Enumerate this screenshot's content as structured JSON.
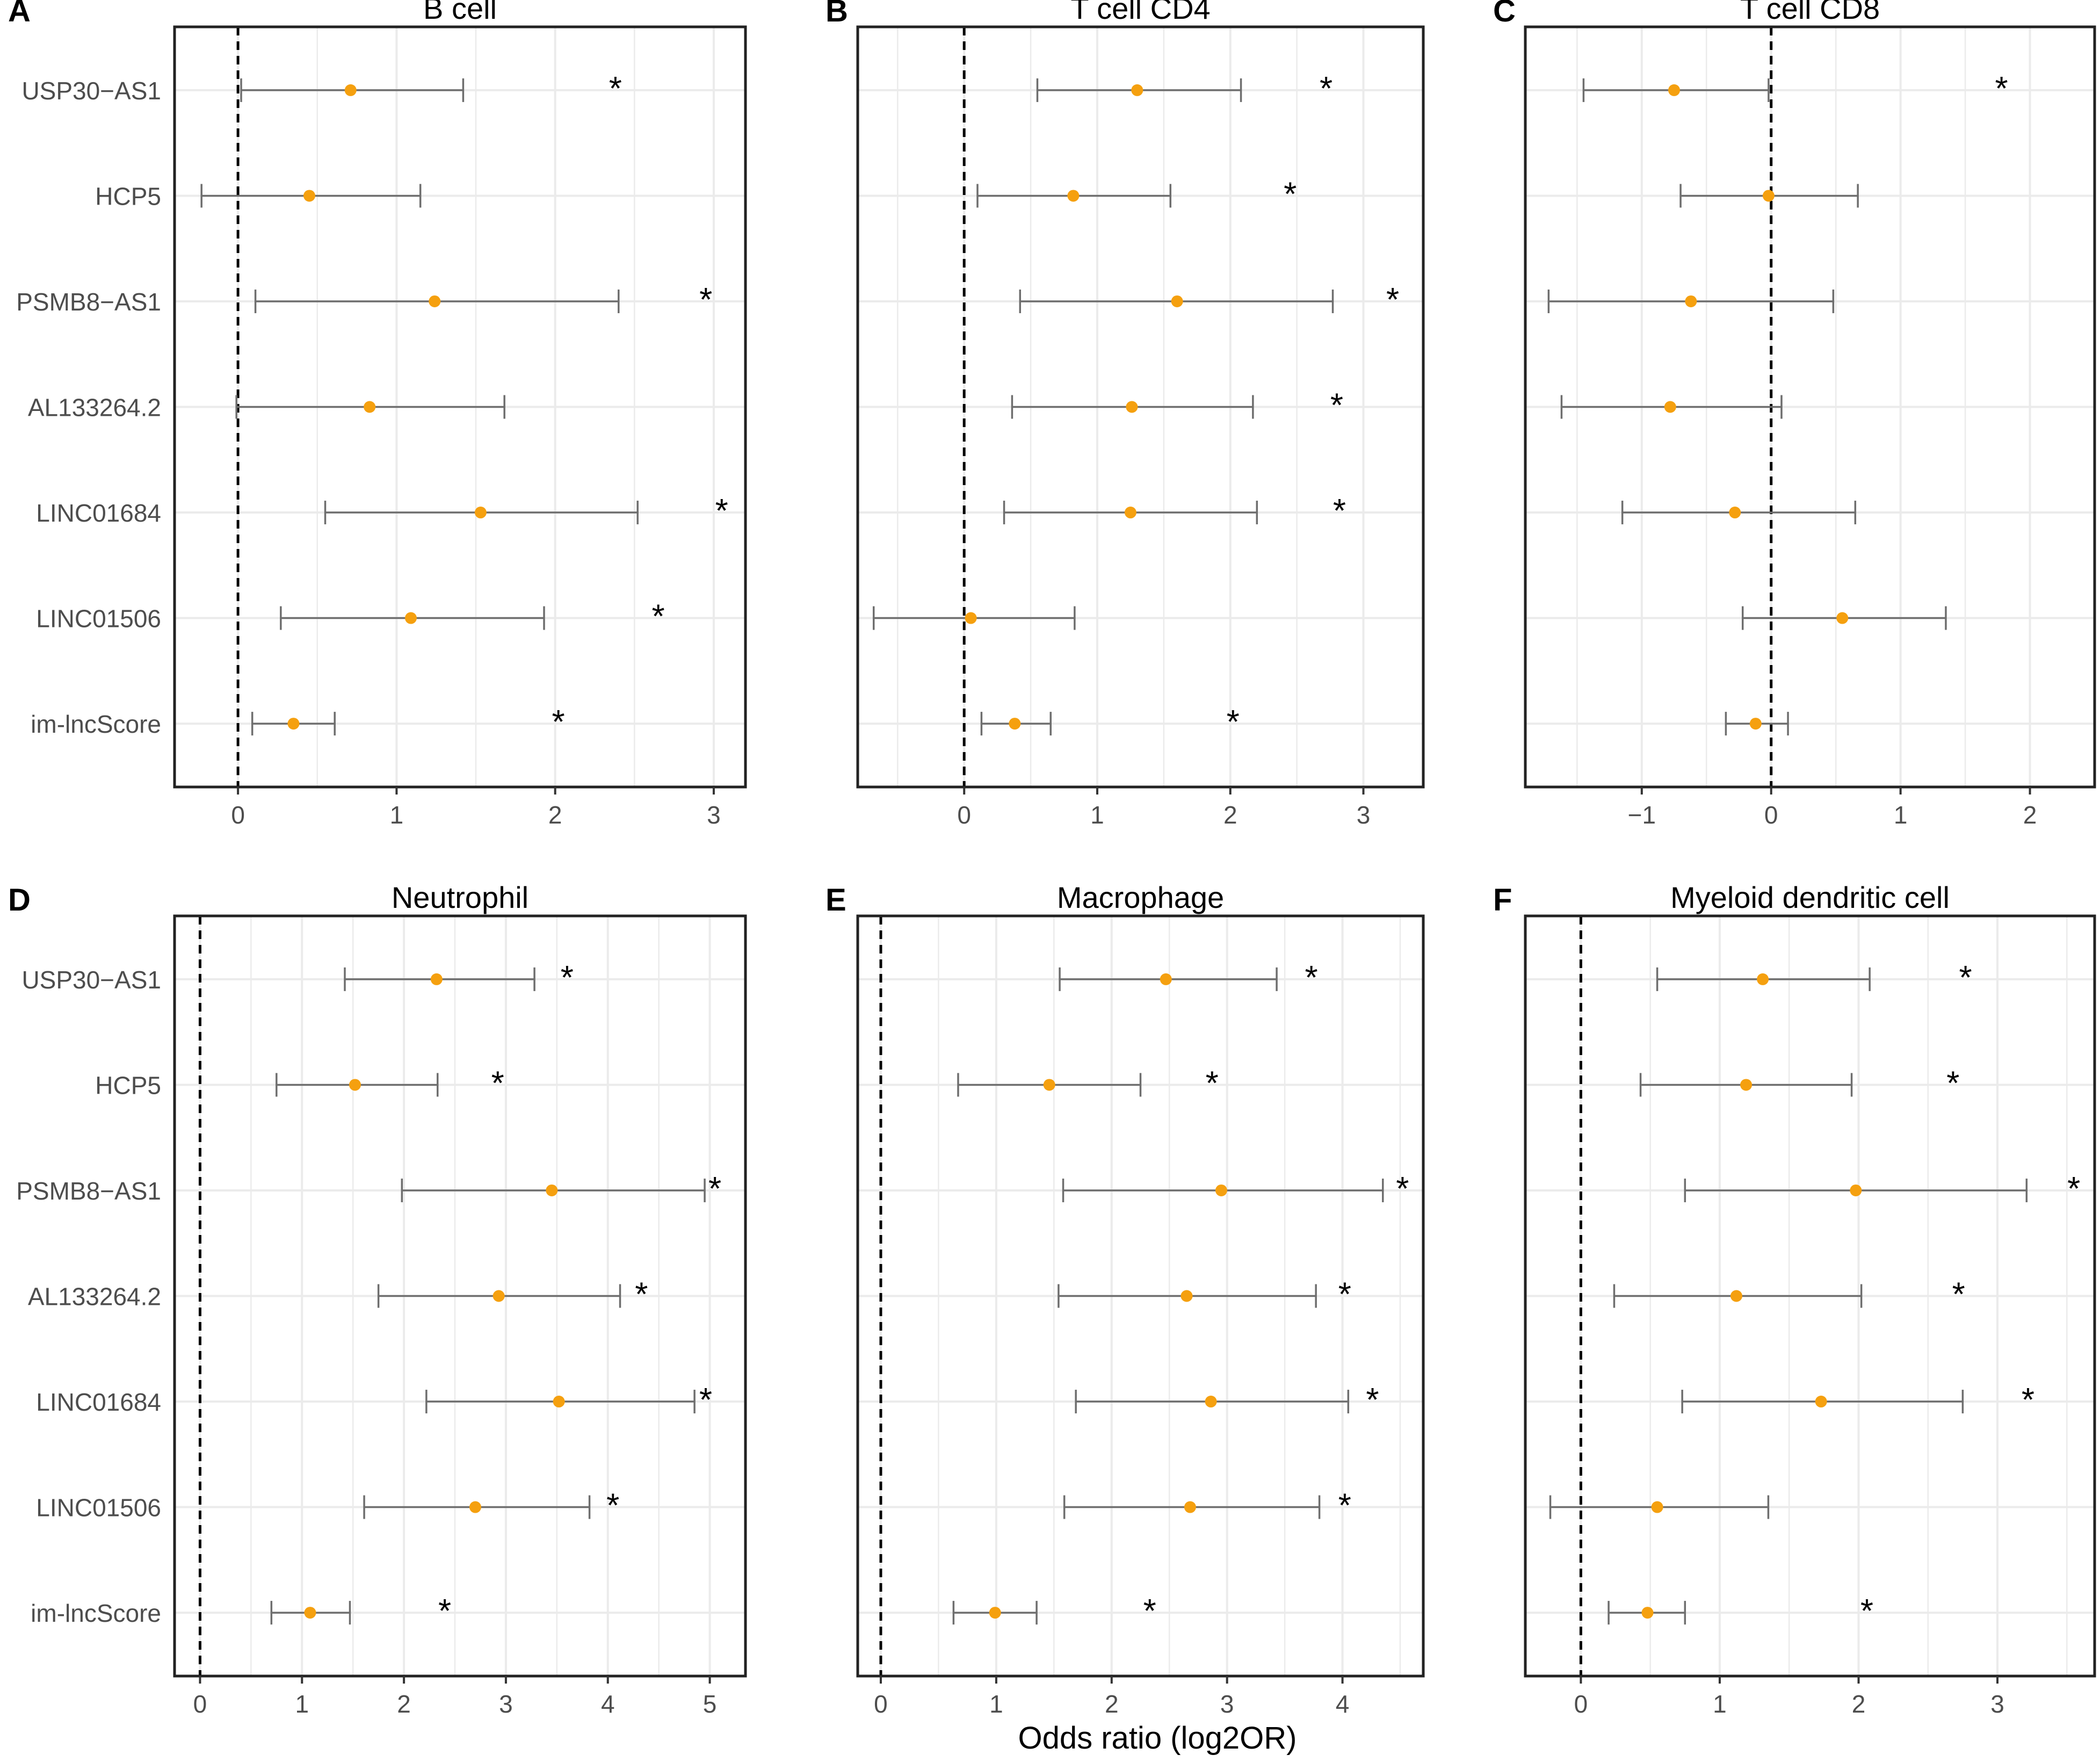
{
  "figure": {
    "xlabel": "Odds ratio (log2OR)",
    "categories": [
      "USP30−AS1",
      "HCP5",
      "PSMB8−AS1",
      "AL133264.2",
      "LINC01684",
      "LINC01506",
      "im-lncScore"
    ],
    "significance_marker": "*",
    "colors": {
      "point": "#f5a00f",
      "errorbar": "#6e6e6e",
      "grid": "#ebebeb",
      "reference_line": "#000000",
      "panel_border": "#222222"
    }
  },
  "chart_data": [
    {
      "panel": "A",
      "type": "forest",
      "title": "B cell",
      "xlim": [
        -0.4,
        3.2
      ],
      "xticks": [
        0,
        1,
        2,
        3
      ],
      "xtick_labels": [
        "0",
        "1",
        "2",
        "3"
      ],
      "reference": 0,
      "show_category_labels": true,
      "points": [
        {
          "category": "USP30−AS1",
          "value": 0.71,
          "low": 0.02,
          "high": 1.42,
          "significant": true,
          "star_x": 2.38
        },
        {
          "category": "HCP5",
          "value": 0.45,
          "low": -0.23,
          "high": 1.15,
          "significant": false
        },
        {
          "category": "PSMB8−AS1",
          "value": 1.24,
          "low": 0.11,
          "high": 2.4,
          "significant": true,
          "star_x": 2.95
        },
        {
          "category": "AL133264.2",
          "value": 0.83,
          "low": -0.01,
          "high": 1.68,
          "significant": false
        },
        {
          "category": "LINC01684",
          "value": 1.53,
          "low": 0.55,
          "high": 2.52,
          "significant": true,
          "star_x": 3.05
        },
        {
          "category": "LINC01506",
          "value": 1.09,
          "low": 0.27,
          "high": 1.93,
          "significant": true,
          "star_x": 2.65
        },
        {
          "category": "im-lncScore",
          "value": 0.35,
          "low": 0.09,
          "high": 0.61,
          "significant": true,
          "star_x": 2.02
        }
      ]
    },
    {
      "panel": "B",
      "type": "forest",
      "title": "T cell CD4",
      "xlim": [
        -0.8,
        3.45
      ],
      "xticks": [
        0,
        1,
        2,
        3
      ],
      "xtick_labels": [
        "0",
        "1",
        "2",
        "3"
      ],
      "reference": 0,
      "show_category_labels": false,
      "points": [
        {
          "category": "USP30−AS1",
          "value": 1.3,
          "low": 0.55,
          "high": 2.08,
          "significant": true,
          "star_x": 2.72
        },
        {
          "category": "HCP5",
          "value": 0.82,
          "low": 0.1,
          "high": 1.55,
          "significant": true,
          "star_x": 2.45
        },
        {
          "category": "PSMB8−AS1",
          "value": 1.6,
          "low": 0.42,
          "high": 2.77,
          "significant": true,
          "star_x": 3.22
        },
        {
          "category": "AL133264.2",
          "value": 1.26,
          "low": 0.36,
          "high": 2.17,
          "significant": true,
          "star_x": 2.8
        },
        {
          "category": "LINC01684",
          "value": 1.25,
          "low": 0.3,
          "high": 2.2,
          "significant": true,
          "star_x": 2.82
        },
        {
          "category": "LINC01506",
          "value": 0.05,
          "low": -0.68,
          "high": 0.83,
          "significant": false
        },
        {
          "category": "im-lncScore",
          "value": 0.38,
          "low": 0.13,
          "high": 0.65,
          "significant": true,
          "star_x": 2.02
        }
      ]
    },
    {
      "panel": "C",
      "type": "forest",
      "title": "T cell CD8",
      "xlim": [
        -1.9,
        2.5
      ],
      "xticks": [
        -1,
        0,
        1,
        2
      ],
      "xtick_labels": [
        "−1",
        "0",
        "1",
        "2"
      ],
      "reference": 0,
      "show_category_labels": false,
      "points": [
        {
          "category": "USP30−AS1",
          "value": -0.75,
          "low": -1.45,
          "high": -0.02,
          "significant": true,
          "star_x": 1.78
        },
        {
          "category": "HCP5",
          "value": -0.02,
          "low": -0.7,
          "high": 0.67,
          "significant": false
        },
        {
          "category": "PSMB8−AS1",
          "value": -0.62,
          "low": -1.72,
          "high": 0.48,
          "significant": false
        },
        {
          "category": "AL133264.2",
          "value": -0.78,
          "low": -1.62,
          "high": 0.08,
          "significant": false
        },
        {
          "category": "LINC01684",
          "value": -0.28,
          "low": -1.15,
          "high": 0.65,
          "significant": false
        },
        {
          "category": "LINC01506",
          "value": 0.55,
          "low": -0.22,
          "high": 1.35,
          "significant": false
        },
        {
          "category": "im-lncScore",
          "value": -0.12,
          "low": -0.35,
          "high": 0.13,
          "significant": false
        }
      ]
    },
    {
      "panel": "D",
      "type": "forest",
      "title": "Neutrophil",
      "xlim": [
        -0.25,
        5.35
      ],
      "xticks": [
        0,
        1,
        2,
        3,
        4,
        5
      ],
      "xtick_labels": [
        "0",
        "1",
        "2",
        "3",
        "4",
        "5"
      ],
      "reference": 0,
      "show_category_labels": true,
      "points": [
        {
          "category": "USP30−AS1",
          "value": 2.32,
          "low": 1.42,
          "high": 3.28,
          "significant": true,
          "star_x": 3.6
        },
        {
          "category": "HCP5",
          "value": 1.52,
          "low": 0.75,
          "high": 2.33,
          "significant": true,
          "star_x": 2.92
        },
        {
          "category": "PSMB8−AS1",
          "value": 3.45,
          "low": 1.98,
          "high": 4.95,
          "significant": true,
          "star_x": 5.05
        },
        {
          "category": "AL133264.2",
          "value": 2.93,
          "low": 1.75,
          "high": 4.12,
          "significant": true,
          "star_x": 4.33
        },
        {
          "category": "LINC01684",
          "value": 3.52,
          "low": 2.22,
          "high": 4.85,
          "significant": true,
          "star_x": 4.96
        },
        {
          "category": "LINC01506",
          "value": 2.7,
          "low": 1.61,
          "high": 3.82,
          "significant": true,
          "star_x": 4.05
        },
        {
          "category": "im-lncScore",
          "value": 1.08,
          "low": 0.7,
          "high": 1.47,
          "significant": true,
          "star_x": 2.4
        }
      ]
    },
    {
      "panel": "E",
      "type": "forest",
      "title": "Macrophage",
      "xlim": [
        -0.2,
        4.7
      ],
      "xticks": [
        0,
        1,
        2,
        3,
        4
      ],
      "xtick_labels": [
        "0",
        "1",
        "2",
        "3",
        "4"
      ],
      "reference": 0,
      "show_category_labels": false,
      "points": [
        {
          "category": "USP30−AS1",
          "value": 2.47,
          "low": 1.55,
          "high": 3.43,
          "significant": true,
          "star_x": 3.73
        },
        {
          "category": "HCP5",
          "value": 1.46,
          "low": 0.67,
          "high": 2.25,
          "significant": true,
          "star_x": 2.87
        },
        {
          "category": "PSMB8−AS1",
          "value": 2.95,
          "low": 1.58,
          "high": 4.35,
          "significant": true,
          "star_x": 4.52
        },
        {
          "category": "AL133264.2",
          "value": 2.65,
          "low": 1.54,
          "high": 3.77,
          "significant": true,
          "star_x": 4.02
        },
        {
          "category": "LINC01684",
          "value": 2.86,
          "low": 1.69,
          "high": 4.05,
          "significant": true,
          "star_x": 4.26
        },
        {
          "category": "LINC01506",
          "value": 2.68,
          "low": 1.59,
          "high": 3.8,
          "significant": true,
          "star_x": 4.02
        },
        {
          "category": "im-lncScore",
          "value": 0.99,
          "low": 0.63,
          "high": 1.35,
          "significant": true,
          "star_x": 2.33
        }
      ]
    },
    {
      "panel": "F",
      "type": "forest",
      "title": "Myeloid dendritic cell",
      "xlim": [
        -0.4,
        3.7
      ],
      "xticks": [
        0,
        1,
        2,
        3
      ],
      "xtick_labels": [
        "0",
        "1",
        "2",
        "3"
      ],
      "reference": 0,
      "show_category_labels": false,
      "points": [
        {
          "category": "USP30−AS1",
          "value": 1.31,
          "low": 0.55,
          "high": 2.08,
          "significant": true,
          "star_x": 2.77
        },
        {
          "category": "HCP5",
          "value": 1.19,
          "low": 0.43,
          "high": 1.95,
          "significant": true,
          "star_x": 2.68
        },
        {
          "category": "PSMB8−AS1",
          "value": 1.98,
          "low": 0.75,
          "high": 3.21,
          "significant": true,
          "star_x": 3.55
        },
        {
          "category": "AL133264.2",
          "value": 1.12,
          "low": 0.24,
          "high": 2.02,
          "significant": true,
          "star_x": 2.72
        },
        {
          "category": "LINC01684",
          "value": 1.73,
          "low": 0.73,
          "high": 2.75,
          "significant": true,
          "star_x": 3.22
        },
        {
          "category": "LINC01506",
          "value": 0.55,
          "low": -0.22,
          "high": 1.35,
          "significant": false
        },
        {
          "category": "im-lncScore",
          "value": 0.48,
          "low": 0.2,
          "high": 0.75,
          "significant": true,
          "star_x": 2.06
        }
      ]
    }
  ]
}
